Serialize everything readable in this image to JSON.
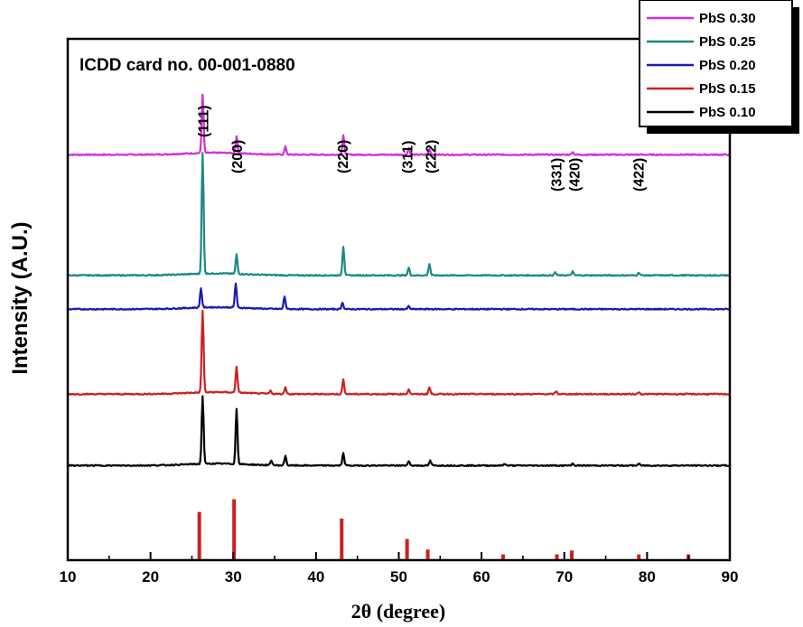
{
  "chart_data": {
    "type": "line",
    "title": "ICDD card no. 00-001-0880",
    "xlabel": "2θ (degree)",
    "ylabel": "Intensity (A.U.)",
    "xlim": [
      10,
      90
    ],
    "xticks": [
      "10",
      "20",
      "30",
      "40",
      "50",
      "60",
      "70",
      "80",
      "90"
    ],
    "xtick_values": [
      10,
      20,
      30,
      40,
      50,
      60,
      70,
      80,
      90
    ],
    "legend_position": "top-right",
    "series": [
      {
        "name": "PbS 0.30",
        "color": "#d42cd8",
        "baseline": 4.2,
        "peaks": [
          [
            26.3,
            0.6
          ],
          [
            30.4,
            0.17
          ],
          [
            36.3,
            0.08
          ],
          [
            43.3,
            0.2
          ],
          [
            51.2,
            0.07
          ],
          [
            53.7,
            0.06
          ],
          [
            71.0,
            0.03
          ]
        ]
      },
      {
        "name": "PbS 0.25",
        "color": "#1b8a80",
        "baseline": 2.95,
        "peaks": [
          [
            26.3,
            1.25
          ],
          [
            30.4,
            0.2
          ],
          [
            43.3,
            0.3
          ],
          [
            51.2,
            0.08
          ],
          [
            53.7,
            0.12
          ],
          [
            68.9,
            0.03
          ],
          [
            71.0,
            0.04
          ],
          [
            79.0,
            0.03
          ]
        ]
      },
      {
        "name": "PbS 0.20",
        "color": "#1a1ab4",
        "baseline": 2.6,
        "peaks": [
          [
            26.1,
            0.2
          ],
          [
            30.3,
            0.25
          ],
          [
            36.2,
            0.13
          ],
          [
            43.2,
            0.07
          ],
          [
            51.2,
            0.03
          ]
        ]
      },
      {
        "name": "PbS 0.15",
        "color": "#cc2020",
        "baseline": 1.72,
        "peaks": [
          [
            26.3,
            0.85
          ],
          [
            30.4,
            0.27
          ],
          [
            34.5,
            0.03
          ],
          [
            36.3,
            0.07
          ],
          [
            43.3,
            0.15
          ],
          [
            51.2,
            0.05
          ],
          [
            53.7,
            0.07
          ],
          [
            69.0,
            0.03
          ],
          [
            79.0,
            0.02
          ]
        ]
      },
      {
        "name": "PbS 0.10",
        "color": "#000000",
        "baseline": 0.98,
        "peaks": [
          [
            26.3,
            0.7
          ],
          [
            30.4,
            0.57
          ],
          [
            34.6,
            0.05
          ],
          [
            36.3,
            0.1
          ],
          [
            43.3,
            0.13
          ],
          [
            51.2,
            0.05
          ],
          [
            53.8,
            0.05
          ],
          [
            62.8,
            0.02
          ],
          [
            71.0,
            0.02
          ],
          [
            79.0,
            0.02
          ]
        ]
      }
    ],
    "reference": {
      "name": "ICDD card no. 00-001-0880",
      "color": "#cc2020",
      "lines": [
        [
          25.9,
          0.5
        ],
        [
          30.1,
          0.63
        ],
        [
          43.1,
          0.43
        ],
        [
          51.0,
          0.22
        ],
        [
          53.5,
          0.11
        ],
        [
          62.6,
          0.06
        ],
        [
          69.1,
          0.06
        ],
        [
          70.9,
          0.1
        ],
        [
          79.0,
          0.06
        ],
        [
          85.0,
          0.06
        ]
      ]
    },
    "annotations": [
      {
        "text": "(111)",
        "x": 26.3
      },
      {
        "text": "(200)",
        "x": 30.4
      },
      {
        "text": "(220)",
        "x": 43.2
      },
      {
        "text": "(311)",
        "x": 51.0
      },
      {
        "text": "(222)",
        "x": 53.8
      },
      {
        "text": "(331)",
        "x": 69.0
      },
      {
        "text": "(420)",
        "x": 71.2
      },
      {
        "text": "(422)",
        "x": 78.9
      }
    ],
    "ylim": [
      0,
      5.4
    ]
  }
}
